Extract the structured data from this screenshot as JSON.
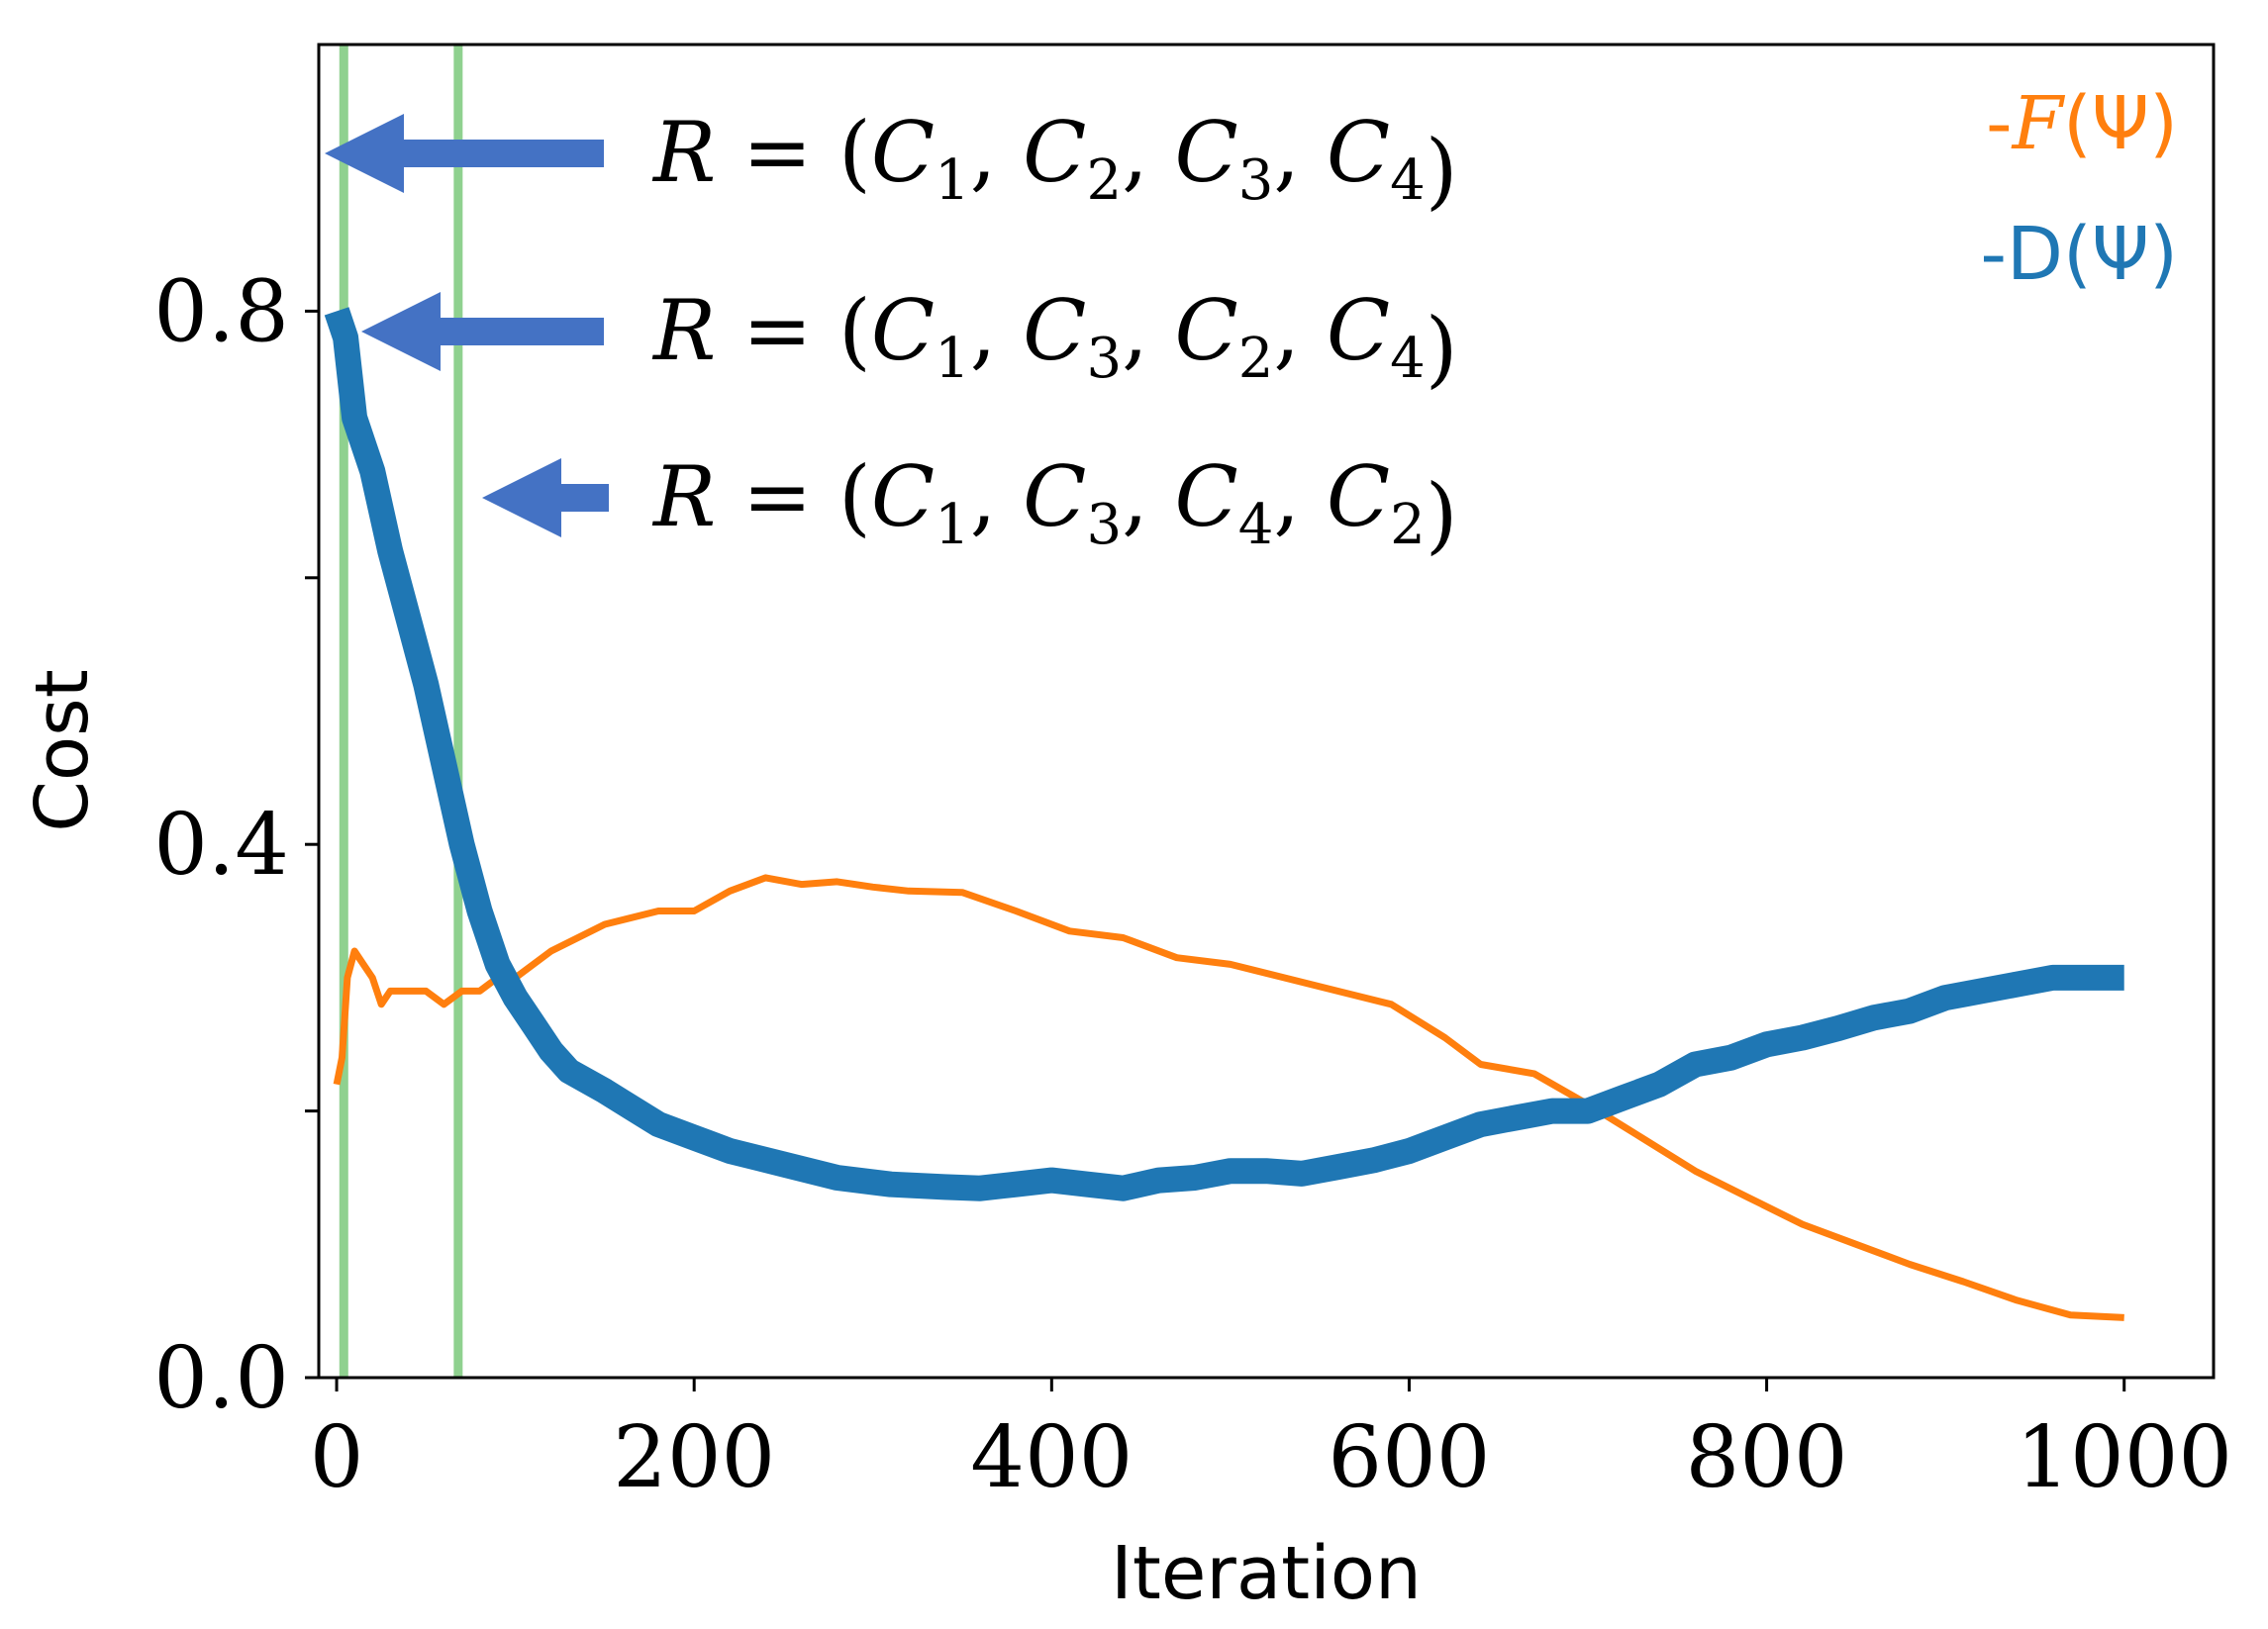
{
  "chart_data": {
    "type": "line",
    "title": "",
    "xlabel": "Iteration",
    "ylabel": "Cost",
    "xlim": [
      -10,
      1050
    ],
    "ylim": [
      0.0,
      1.0
    ],
    "x_ticks": [
      0,
      200,
      400,
      600,
      800,
      1000
    ],
    "x_tick_labels": [
      "0",
      "200",
      "400",
      "600",
      "800",
      "1000"
    ],
    "y_ticks": [
      0.0,
      0.2,
      0.4,
      0.6,
      0.8
    ],
    "y_tick_labels": [
      "0.0",
      "",
      "0.4",
      "",
      "0.8"
    ],
    "grid": false,
    "legend_position": "top-right",
    "colors": {
      "f_series": "#ff7f0e",
      "d_series": "#1f77b4",
      "vline": "#8fd18f",
      "arrow": "#4472c4"
    },
    "series": [
      {
        "name": "-F(Ψ)",
        "legend_prefix": "-",
        "legend_symbol": "F",
        "legend_arg": "(Ψ)",
        "color": "#ff7f0e",
        "x": [
          0,
          3,
          6,
          10,
          15,
          20,
          25,
          30,
          40,
          50,
          60,
          70,
          80,
          90,
          100,
          120,
          150,
          180,
          200,
          220,
          240,
          260,
          280,
          300,
          320,
          350,
          380,
          410,
          440,
          470,
          500,
          530,
          560,
          590,
          620,
          640,
          670,
          700,
          730,
          760,
          790,
          820,
          850,
          880,
          910,
          940,
          970,
          1000
        ],
        "y": [
          0.22,
          0.24,
          0.3,
          0.32,
          0.31,
          0.3,
          0.28,
          0.29,
          0.29,
          0.29,
          0.28,
          0.29,
          0.29,
          0.3,
          0.3,
          0.32,
          0.34,
          0.35,
          0.35,
          0.365,
          0.375,
          0.37,
          0.372,
          0.368,
          0.365,
          0.364,
          0.35,
          0.335,
          0.33,
          0.315,
          0.31,
          0.3,
          0.29,
          0.28,
          0.255,
          0.235,
          0.228,
          0.205,
          0.18,
          0.155,
          0.135,
          0.115,
          0.1,
          0.085,
          0.072,
          0.058,
          0.047,
          0.045
        ]
      },
      {
        "name": "-D(Ψ)",
        "legend_prefix": "-",
        "legend_symbol": "D",
        "legend_arg": "(Ψ)",
        "color": "#1f77b4",
        "x": [
          0,
          5,
          10,
          20,
          30,
          40,
          50,
          60,
          70,
          80,
          90,
          100,
          110,
          120,
          130,
          150,
          180,
          200,
          220,
          250,
          280,
          310,
          340,
          360,
          380,
          400,
          420,
          440,
          460,
          480,
          500,
          520,
          540,
          560,
          580,
          600,
          620,
          640,
          660,
          680,
          700,
          720,
          740,
          760,
          780,
          800,
          820,
          840,
          860,
          880,
          900,
          920,
          940,
          960,
          980,
          1000
        ],
        "y": [
          0.8,
          0.78,
          0.72,
          0.68,
          0.62,
          0.57,
          0.52,
          0.46,
          0.4,
          0.35,
          0.31,
          0.285,
          0.265,
          0.245,
          0.23,
          0.215,
          0.19,
          0.18,
          0.17,
          0.16,
          0.15,
          0.145,
          0.143,
          0.142,
          0.145,
          0.148,
          0.145,
          0.142,
          0.148,
          0.15,
          0.155,
          0.155,
          0.153,
          0.158,
          0.163,
          0.17,
          0.18,
          0.19,
          0.195,
          0.2,
          0.2,
          0.21,
          0.22,
          0.235,
          0.24,
          0.25,
          0.255,
          0.262,
          0.27,
          0.275,
          0.285,
          0.29,
          0.295,
          0.3,
          0.3,
          0.3
        ]
      }
    ],
    "vertical_lines": [
      4,
      68
    ],
    "annotations": [
      {
        "lhs": "R",
        "eq": "=",
        "open": "(",
        "terms": [
          "C1",
          "C2",
          "C3",
          "C4"
        ],
        "bases": [
          "C",
          "C",
          "C",
          "C"
        ],
        "subs": [
          "1",
          "2",
          "3",
          "4"
        ],
        "sep": ",",
        "close": ")"
      },
      {
        "lhs": "R",
        "eq": "=",
        "open": "(",
        "terms": [
          "C1",
          "C3",
          "C2",
          "C4"
        ],
        "bases": [
          "C",
          "C",
          "C",
          "C"
        ],
        "subs": [
          "1",
          "3",
          "2",
          "4"
        ],
        "sep": ",",
        "close": ")"
      },
      {
        "lhs": "R",
        "eq": "=",
        "open": "(",
        "terms": [
          "C1",
          "C3",
          "C4",
          "C2"
        ],
        "bases": [
          "C",
          "C",
          "C",
          "C"
        ],
        "subs": [
          "1",
          "3",
          "4",
          "2"
        ],
        "sep": ",",
        "close": ")"
      }
    ]
  }
}
